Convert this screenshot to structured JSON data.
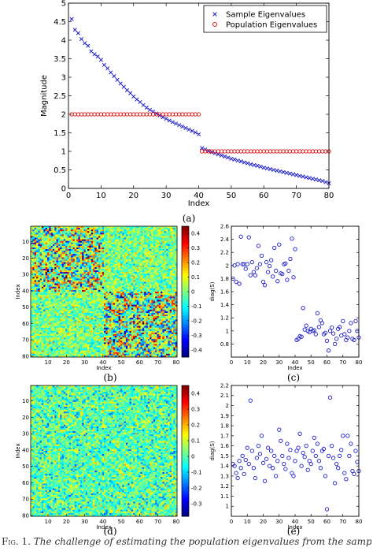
{
  "caption": {
    "label": "Fig. 1.",
    "text": "The challenge of estimating the population eigenvalues from the sample eigenval"
  },
  "panel_labels": [
    "(a)",
    "(b)",
    "(c)",
    "(d)",
    "(e)"
  ],
  "chart_data": [
    {
      "id": "a",
      "type": "scatter",
      "xlabel": "Index",
      "ylabel": "Magnitude",
      "xlim": [
        0,
        80
      ],
      "ylim": [
        0,
        5
      ],
      "xticks": [
        0,
        10,
        20,
        30,
        40,
        50,
        60,
        70,
        80
      ],
      "yticks": [
        0,
        0.5,
        1,
        1.5,
        2,
        2.5,
        3,
        3.5,
        4,
        4.5,
        5
      ],
      "grid": false,
      "legend_position": "top-right",
      "series": [
        {
          "name": "Sample Eigenvalues",
          "marker": "x",
          "color": "#1f1fcc",
          "x": [
            1,
            2,
            3,
            4,
            5,
            6,
            7,
            8,
            9,
            10,
            11,
            12,
            13,
            14,
            15,
            16,
            17,
            18,
            19,
            20,
            21,
            22,
            23,
            24,
            25,
            26,
            27,
            28,
            29,
            30,
            31,
            32,
            33,
            34,
            35,
            36,
            37,
            38,
            39,
            40,
            41,
            42,
            43,
            44,
            45,
            46,
            47,
            48,
            49,
            50,
            51,
            52,
            53,
            54,
            55,
            56,
            57,
            58,
            59,
            60,
            61,
            62,
            63,
            64,
            65,
            66,
            67,
            68,
            69,
            70,
            71,
            72,
            73,
            74,
            75,
            76,
            77,
            78,
            79,
            80
          ],
          "y": [
            4.57,
            4.28,
            4.19,
            4.03,
            3.92,
            3.85,
            3.7,
            3.62,
            3.56,
            3.47,
            3.33,
            3.24,
            3.13,
            3.03,
            2.93,
            2.83,
            2.74,
            2.65,
            2.57,
            2.48,
            2.4,
            2.33,
            2.25,
            2.18,
            2.12,
            2.07,
            2.02,
            1.97,
            1.92,
            1.88,
            1.83,
            1.79,
            1.75,
            1.71,
            1.67,
            1.63,
            1.59,
            1.55,
            1.51,
            1.46,
            1.09,
            1.05,
            1.01,
            0.98,
            0.95,
            0.92,
            0.89,
            0.86,
            0.83,
            0.8,
            0.78,
            0.75,
            0.73,
            0.7,
            0.68,
            0.65,
            0.63,
            0.61,
            0.59,
            0.56,
            0.54,
            0.52,
            0.5,
            0.48,
            0.46,
            0.44,
            0.42,
            0.4,
            0.38,
            0.36,
            0.34,
            0.32,
            0.3,
            0.28,
            0.26,
            0.24,
            0.22,
            0.2,
            0.17,
            0.14
          ]
        },
        {
          "name": "Population Eigenvalues",
          "marker": "o",
          "color": "#dd1111",
          "x": [
            1,
            2,
            3,
            4,
            5,
            6,
            7,
            8,
            9,
            10,
            11,
            12,
            13,
            14,
            15,
            16,
            17,
            18,
            19,
            20,
            21,
            22,
            23,
            24,
            25,
            26,
            27,
            28,
            29,
            30,
            31,
            32,
            33,
            34,
            35,
            36,
            37,
            38,
            39,
            40,
            41,
            42,
            43,
            44,
            45,
            46,
            47,
            48,
            49,
            50,
            51,
            52,
            53,
            54,
            55,
            56,
            57,
            58,
            59,
            60,
            61,
            62,
            63,
            64,
            65,
            66,
            67,
            68,
            69,
            70,
            71,
            72,
            73,
            74,
            75,
            76,
            77,
            78,
            79,
            80
          ],
          "y": [
            2,
            2,
            2,
            2,
            2,
            2,
            2,
            2,
            2,
            2,
            2,
            2,
            2,
            2,
            2,
            2,
            2,
            2,
            2,
            2,
            2,
            2,
            2,
            2,
            2,
            2,
            2,
            2,
            2,
            2,
            2,
            2,
            2,
            2,
            2,
            2,
            2,
            2,
            2,
            2,
            1,
            1,
            1,
            1,
            1,
            1,
            1,
            1,
            1,
            1,
            1,
            1,
            1,
            1,
            1,
            1,
            1,
            1,
            1,
            1,
            1,
            1,
            1,
            1,
            1,
            1,
            1,
            1,
            1,
            1,
            1,
            1,
            1,
            1,
            1,
            1,
            1,
            1,
            1,
            1
          ]
        }
      ]
    },
    {
      "id": "b",
      "type": "heatmap",
      "xlabel": "Index",
      "ylabel": "Index",
      "size": 80,
      "xticks": [
        10,
        20,
        30,
        40,
        50,
        60,
        70,
        80
      ],
      "yticks": [
        10,
        20,
        30,
        40,
        50,
        60,
        70,
        80
      ],
      "colorbar_range": [
        -0.45,
        0.45
      ],
      "colorbar_ticks": [
        -0.4,
        -0.3,
        -0.2,
        -0.1,
        0,
        0.1,
        0.2,
        0.3,
        0.4
      ],
      "block_structure": {
        "block_size": 40,
        "diag_block_amplitude": 0.32,
        "offdiag_amplitude": 0.14
      }
    },
    {
      "id": "c",
      "type": "scatter",
      "xlabel": "Index",
      "ylabel": "diag(S)",
      "xlim": [
        0,
        80
      ],
      "ylim": [
        0.6,
        2.6
      ],
      "xticks": [
        0,
        10,
        20,
        30,
        40,
        50,
        60,
        70,
        80
      ],
      "yticks": [
        0.8,
        1,
        1.2,
        1.4,
        1.6,
        1.8,
        2,
        2.2,
        2.4,
        2.6
      ],
      "marker": "o",
      "color": "#1f1fcc",
      "x": [
        1,
        2,
        3,
        4,
        5,
        6,
        7,
        8,
        9,
        10,
        11,
        12,
        13,
        14,
        15,
        16,
        17,
        18,
        19,
        20,
        21,
        22,
        23,
        24,
        25,
        26,
        27,
        28,
        29,
        30,
        31,
        32,
        33,
        34,
        35,
        36,
        37,
        38,
        39,
        40,
        41,
        42,
        43,
        44,
        45,
        46,
        47,
        48,
        49,
        50,
        51,
        52,
        53,
        54,
        55,
        56,
        57,
        58,
        59,
        60,
        61,
        62,
        63,
        64,
        65,
        66,
        67,
        68,
        69,
        70,
        71,
        72,
        73,
        74,
        75,
        76,
        77,
        78,
        79,
        80
      ],
      "y": [
        1.8,
        2.0,
        1.75,
        2.02,
        1.72,
        2.44,
        2.02,
        2.02,
        1.95,
        2.02,
        2.43,
        1.85,
        2.05,
        1.9,
        1.85,
        1.96,
        2.3,
        2.02,
        2.15,
        1.75,
        1.7,
        2.05,
        1.9,
        1.99,
        2.08,
        1.83,
        2.27,
        1.92,
        1.76,
        2.32,
        1.88,
        1.87,
        2.02,
        2.03,
        1.78,
        1.92,
        2.1,
        2.41,
        1.82,
        2.25,
        0.86,
        0.88,
        0.92,
        0.91,
        1.35,
        1.02,
        1.08,
        1.0,
        0.98,
        1.03,
        1.0,
        1.01,
        0.95,
        1.27,
        1.06,
        1.16,
        1.12,
        0.95,
        0.97,
        0.85,
        0.7,
        1.0,
        1.05,
        0.96,
        0.8,
        0.88,
        1.03,
        1.06,
        0.93,
        1.15,
        0.95,
        0.86,
        0.9,
        1.0,
        1.12,
        0.88,
        0.86,
        1.15,
        1.0,
        0.9
      ]
    },
    {
      "id": "d",
      "type": "heatmap",
      "xlabel": "Index",
      "ylabel": "Index",
      "size": 80,
      "xticks": [
        10,
        20,
        30,
        40,
        50,
        60,
        70,
        80
      ],
      "yticks": [
        10,
        20,
        30,
        40,
        50,
        60,
        70,
        80
      ],
      "colorbar_range": [
        -0.38,
        0.45
      ],
      "colorbar_ticks": [
        -0.3,
        -0.2,
        -0.1,
        0,
        0.1,
        0.2,
        0.3,
        0.4
      ],
      "block_structure": {
        "block_size": 80,
        "diag_block_amplitude": 0.14,
        "offdiag_amplitude": 0.14
      }
    },
    {
      "id": "e",
      "type": "scatter",
      "xlabel": "Index",
      "ylabel": "diag(S)",
      "xlim": [
        0,
        80
      ],
      "ylim": [
        0.9,
        2.2
      ],
      "xticks": [
        0,
        10,
        20,
        30,
        40,
        50,
        60,
        70,
        80
      ],
      "yticks": [
        1,
        1.1,
        1.2,
        1.3,
        1.4,
        1.5,
        1.6,
        1.7,
        1.8,
        1.9,
        2,
        2.1,
        2.2
      ],
      "marker": "o",
      "color": "#1f1fcc",
      "x": [
        1,
        2,
        3,
        4,
        5,
        6,
        7,
        8,
        9,
        10,
        11,
        12,
        13,
        14,
        15,
        16,
        17,
        18,
        19,
        20,
        21,
        22,
        23,
        24,
        25,
        26,
        27,
        28,
        29,
        30,
        31,
        32,
        33,
        34,
        35,
        36,
        37,
        38,
        39,
        40,
        41,
        42,
        43,
        44,
        45,
        46,
        47,
        48,
        49,
        50,
        51,
        52,
        53,
        54,
        55,
        56,
        57,
        58,
        59,
        60,
        61,
        62,
        63,
        64,
        65,
        66,
        67,
        68,
        69,
        70,
        71,
        72,
        73,
        74,
        75,
        76,
        77,
        78,
        79,
        80
      ],
      "y": [
        1.42,
        1.4,
        1.33,
        1.28,
        1.45,
        1.38,
        1.5,
        1.32,
        1.46,
        1.58,
        1.42,
        2.05,
        1.55,
        1.38,
        1.28,
        1.48,
        1.6,
        1.52,
        1.7,
        1.43,
        1.25,
        1.47,
        1.58,
        1.4,
        1.55,
        1.38,
        1.5,
        1.3,
        1.45,
        1.76,
        1.65,
        1.5,
        1.42,
        1.37,
        1.62,
        1.48,
        1.56,
        1.33,
        1.3,
        1.45,
        1.55,
        1.58,
        1.72,
        1.4,
        1.53,
        1.49,
        1.6,
        1.36,
        1.45,
        1.42,
        1.55,
        1.68,
        1.5,
        1.62,
        1.45,
        1.38,
        1.55,
        1.57,
        1.3,
        0.97,
        1.5,
        2.08,
        1.6,
        1.48,
        1.23,
        1.42,
        1.38,
        1.5,
        1.56,
        1.7,
        1.33,
        1.27,
        1.7,
        1.5,
        1.62,
        1.35,
        1.32,
        1.55,
        1.44,
        1.35
      ]
    }
  ]
}
